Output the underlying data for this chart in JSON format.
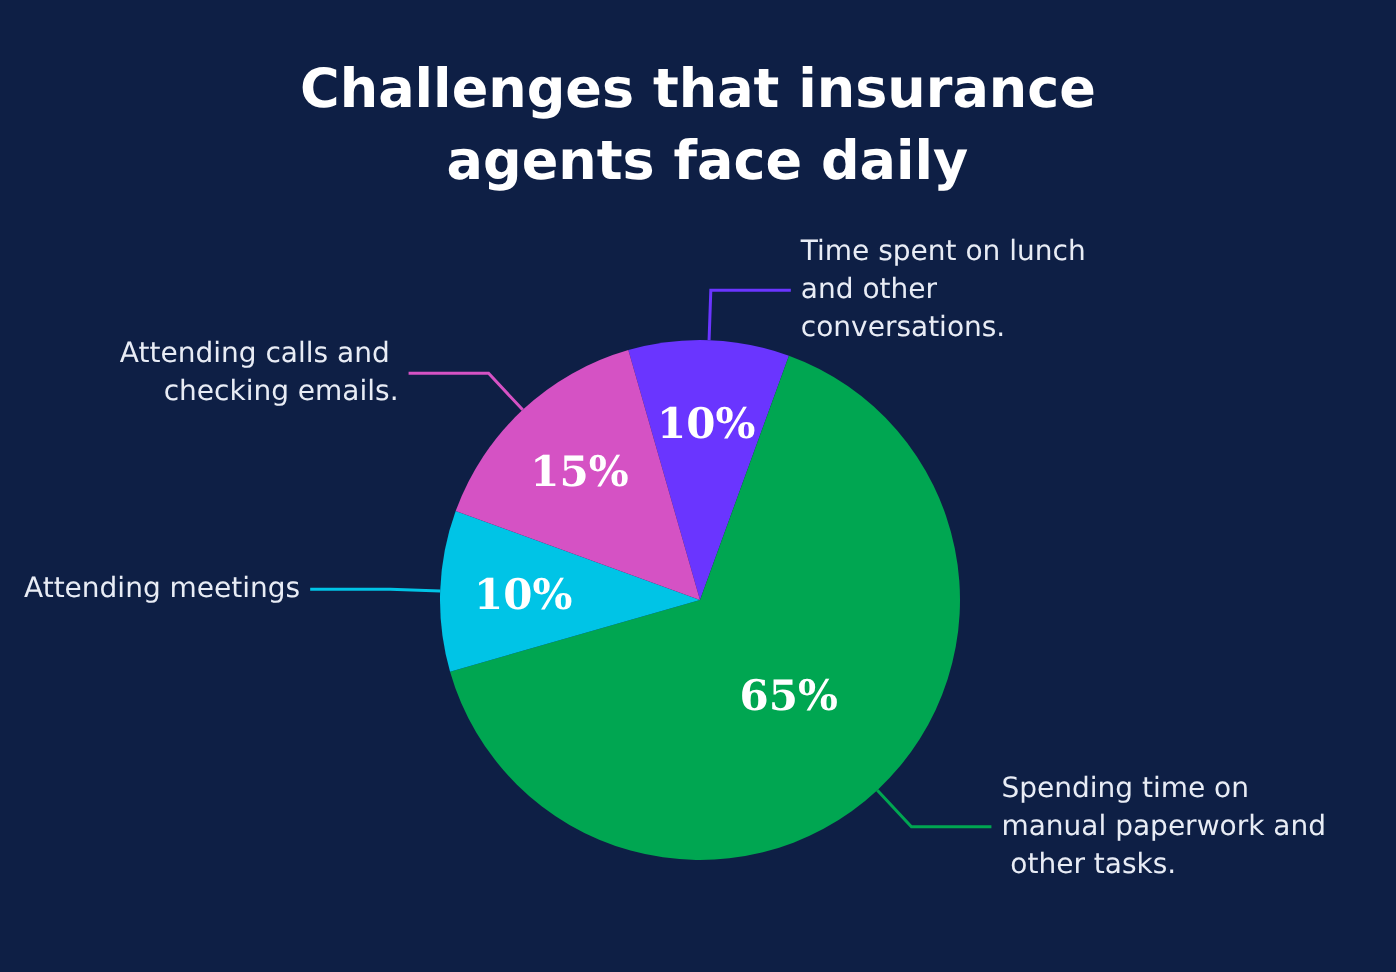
{
  "chart_data": {
    "type": "pie",
    "title": "Challenges that insurance agents face daily",
    "categories": [
      "Time spent on lunch and other conversations.",
      "Spending time on manual paperwork and other tasks.",
      "Attending meetings",
      "Attending calls and checking emails."
    ],
    "values": [
      10,
      65,
      10,
      15
    ],
    "colors": [
      "#6a35ff",
      "#00a651",
      "#00c4e6",
      "#d552c4"
    ],
    "value_labels": [
      "10%",
      "65%",
      "10%",
      "15%"
    ]
  }
}
